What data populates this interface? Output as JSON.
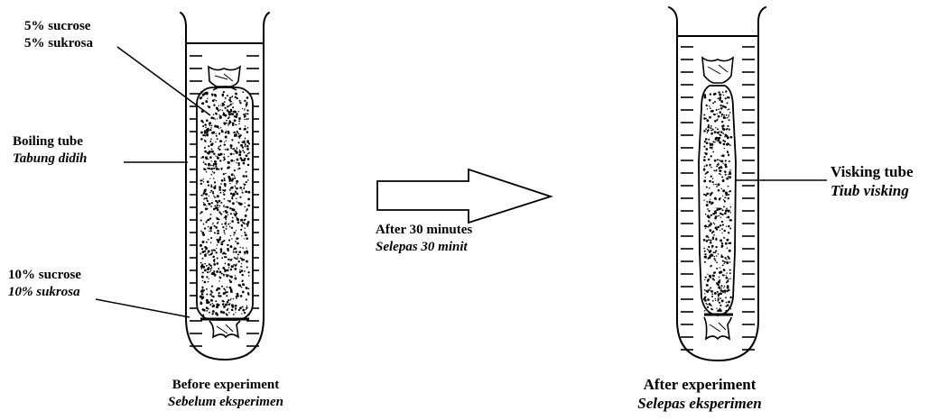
{
  "labels": {
    "sucrose_5": {
      "en": "5% sucrose",
      "ms": "5% sukrosa"
    },
    "boiling_tube": {
      "en": "Boiling tube",
      "ms": "Tabung didih"
    },
    "sucrose_10": {
      "en": "10% sucrose",
      "ms": "10% sukrosa"
    },
    "after_30": {
      "en": "After 30 minutes",
      "ms": "Selepas 30 minit"
    },
    "visking_tube": {
      "en": "Visking tube",
      "ms": "Tiub visking"
    },
    "before_experiment": {
      "en": "Before experiment",
      "ms": "Sebelum eksperimen"
    },
    "after_experiment": {
      "en": "After experiment",
      "ms": "Selepas eksperimen"
    }
  },
  "colors": {
    "ink": "#000000",
    "background": "#ffffff"
  }
}
